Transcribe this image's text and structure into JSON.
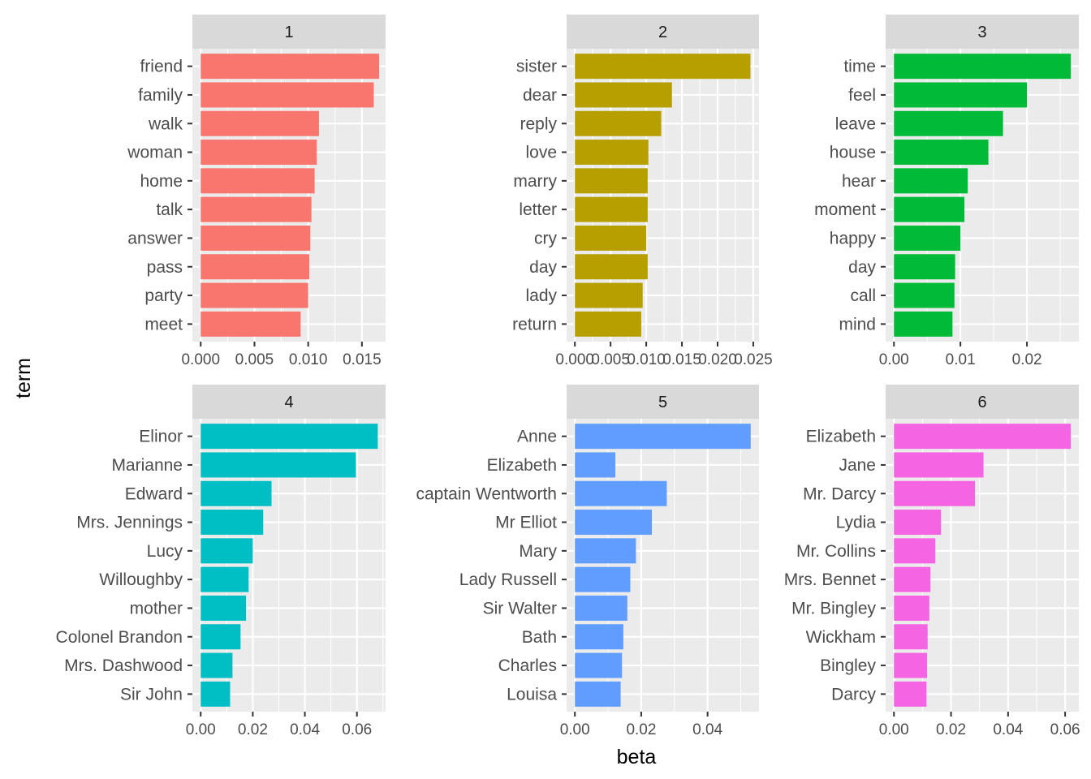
{
  "chart_data": {
    "type": "bar",
    "orientation": "horizontal",
    "xlabel": "beta",
    "ylabel": "term",
    "grid": true,
    "panels": [
      {
        "strip": "1",
        "color": "#F8766D",
        "xlim": [
          0,
          0.0172
        ],
        "ticks": [
          0,
          0.005,
          0.01,
          0.015
        ],
        "tick_labels": [
          "0.000",
          "0.005",
          "0.010",
          "0.015"
        ],
        "categories": [
          "friend",
          "family",
          "walk",
          "woman",
          "home",
          "talk",
          "answer",
          "pass",
          "party",
          "meet"
        ],
        "values": [
          0.0166,
          0.0161,
          0.011,
          0.0108,
          0.0106,
          0.0103,
          0.0102,
          0.0101,
          0.01,
          0.0093
        ]
      },
      {
        "strip": "2",
        "color": "#B79F00",
        "xlim": [
          0,
          0.0258
        ],
        "ticks": [
          0,
          0.005,
          0.01,
          0.015,
          0.02,
          0.025
        ],
        "tick_labels": [
          "0.000",
          "0.005",
          "0.010",
          "0.015",
          "0.020",
          "0.025"
        ],
        "categories": [
          "sister",
          "dear",
          "reply",
          "love",
          "marry",
          "letter",
          "cry",
          "day",
          "lady",
          "return"
        ],
        "values": [
          0.0246,
          0.0136,
          0.0121,
          0.0103,
          0.0102,
          0.0102,
          0.01,
          0.0102,
          0.0095,
          0.0093
        ]
      },
      {
        "strip": "3",
        "color": "#00BA38",
        "xlim": [
          0,
          0.0278
        ],
        "ticks": [
          0,
          0.01,
          0.02
        ],
        "tick_labels": [
          "0.00",
          "0.01",
          "0.02"
        ],
        "categories": [
          "time",
          "feel",
          "leave",
          "house",
          "hear",
          "moment",
          "happy",
          "day",
          "call",
          "mind"
        ],
        "values": [
          0.0266,
          0.02,
          0.0164,
          0.0142,
          0.0111,
          0.0106,
          0.01,
          0.0092,
          0.0091,
          0.0088
        ]
      },
      {
        "strip": "4",
        "color": "#00BFC4",
        "xlim": [
          0,
          0.071
        ],
        "ticks": [
          0,
          0.02,
          0.04,
          0.06
        ],
        "tick_labels": [
          "0.00",
          "0.02",
          "0.04",
          "0.06"
        ],
        "categories": [
          "Elinor",
          "Marianne",
          "Edward",
          "Mrs. Jennings",
          "Lucy",
          "Willoughby",
          "mother",
          "Colonel Brandon",
          "Mrs. Dashwood",
          "Sir John"
        ],
        "values": [
          0.068,
          0.0596,
          0.0272,
          0.024,
          0.02,
          0.0184,
          0.0174,
          0.0153,
          0.0122,
          0.0113
        ]
      },
      {
        "strip": "5",
        "color": "#619CFF",
        "xlim": [
          0,
          0.0555
        ],
        "ticks": [
          0,
          0.02,
          0.04
        ],
        "tick_labels": [
          "0.00",
          "0.02",
          "0.04"
        ],
        "categories": [
          "Anne",
          "Elizabeth",
          "captain Wentworth",
          "Mr Elliot",
          "Mary",
          "Lady Russell",
          "Sir Walter",
          "Bath",
          "Charles",
          "Louisa"
        ],
        "values": [
          0.053,
          0.0122,
          0.0277,
          0.0232,
          0.0184,
          0.0167,
          0.0158,
          0.0146,
          0.0142,
          0.0138
        ]
      },
      {
        "strip": "6",
        "color": "#F564E3",
        "xlim": [
          0,
          0.0648
        ],
        "ticks": [
          0,
          0.02,
          0.04,
          0.06
        ],
        "tick_labels": [
          "0.00",
          "0.02",
          "0.04",
          "0.06"
        ],
        "categories": [
          "Elizabeth",
          "Jane",
          "Mr. Darcy",
          "Lydia",
          "Mr. Collins",
          "Mrs. Bennet",
          "Mr. Bingley",
          "Wickham",
          "Bingley",
          "Darcy"
        ],
        "values": [
          0.062,
          0.0314,
          0.0284,
          0.0165,
          0.0145,
          0.0128,
          0.0124,
          0.0118,
          0.0116,
          0.0114
        ]
      }
    ]
  }
}
